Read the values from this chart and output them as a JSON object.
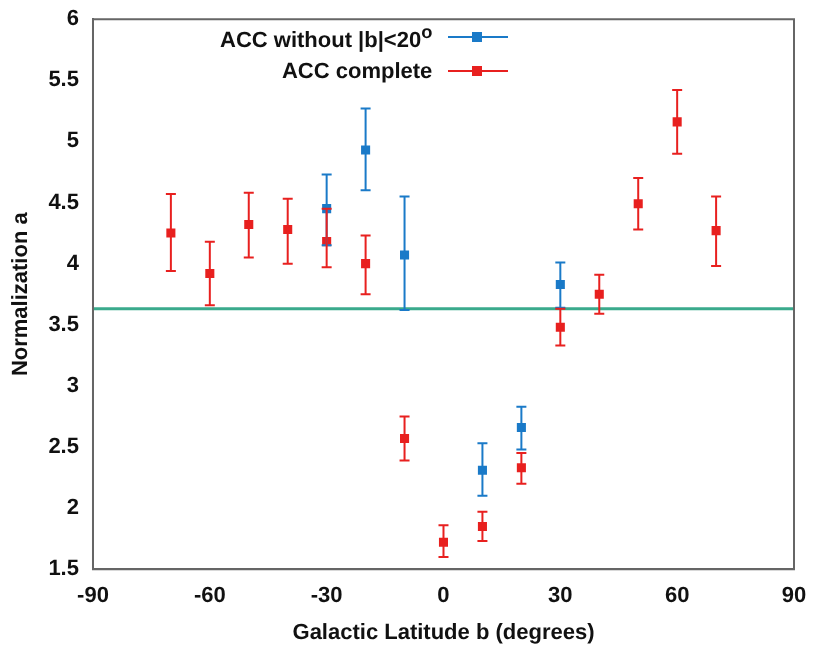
{
  "chart_data": {
    "type": "scatter",
    "xlabel": "Galactic Latitude b (degrees)",
    "ylabel": "Normalization a",
    "xlim": [
      -90,
      90
    ],
    "xticks": [
      -90,
      -60,
      -30,
      0,
      30,
      60,
      90
    ],
    "ylim": [
      1.5,
      6
    ],
    "yticks": [
      1.5,
      2,
      2.5,
      3,
      3.5,
      4,
      4.5,
      5,
      5.5,
      6
    ],
    "grid": false,
    "legend": "top",
    "marker": "square",
    "series": [
      {
        "name": "ACC without |b|<20$^{o}$",
        "color": "#1a7ac8",
        "x": [
          -30,
          -20,
          -10,
          10,
          20,
          30
        ],
        "values": [
          4.45,
          4.93,
          4.07,
          2.31,
          2.66,
          3.83
        ],
        "errors": [
          [
            4.15,
            4.73
          ],
          [
            4.6,
            5.27
          ],
          [
            3.62,
            4.55
          ],
          [
            2.1,
            2.53
          ],
          [
            2.48,
            2.83
          ],
          [
            3.64,
            4.01
          ]
        ]
      },
      {
        "name": "ACC complete",
        "color": "#e8201f",
        "x": [
          -70,
          -60,
          -50,
          -40,
          -30,
          -20,
          -10,
          0,
          10,
          20,
          30,
          40,
          50,
          60,
          70
        ],
        "values": [
          4.25,
          3.92,
          4.32,
          4.28,
          4.18,
          4.0,
          2.57,
          1.72,
          1.85,
          2.33,
          3.48,
          3.75,
          4.49,
          5.16,
          4.27
        ],
        "errors": [
          [
            3.94,
            4.57
          ],
          [
            3.66,
            4.18
          ],
          [
            4.05,
            4.58
          ],
          [
            4.0,
            4.53
          ],
          [
            3.97,
            4.45
          ],
          [
            3.75,
            4.23
          ],
          [
            2.39,
            2.75
          ],
          [
            1.6,
            1.86
          ],
          [
            1.73,
            1.97
          ],
          [
            2.2,
            2.45
          ],
          [
            3.33,
            3.63
          ],
          [
            3.59,
            3.91
          ],
          [
            4.28,
            4.7
          ],
          [
            4.9,
            5.42
          ],
          [
            3.98,
            4.55
          ]
        ]
      }
    ],
    "ref_lines": [
      {
        "axis": "y",
        "value": 3.63,
        "color": "#3aaa8c"
      }
    ]
  }
}
